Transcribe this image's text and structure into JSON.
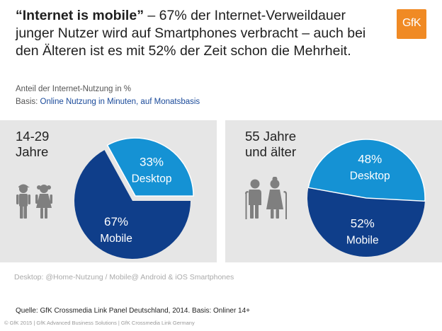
{
  "headline": {
    "bold": "“Internet is mobile”",
    "rest": " – 67% der Internet-Verweildauer junger Nutzer wird auf Smartphones verbracht – auch bei den Älteren ist es mit 52% der Zeit schon die Mehrheit."
  },
  "logo": {
    "text": "GfK",
    "color": "#f08a24"
  },
  "subtitle": {
    "line1": "Anteil der Internet-Nutzung in %",
    "basis_label": "Basis: ",
    "basis_value": "Online Nutzung in Minuten, auf Monatsbasis"
  },
  "colors": {
    "mobile": "#0f3e8a",
    "desktop": "#1592d4",
    "panel": "#e6e6e6"
  },
  "chart_data": [
    {
      "type": "pie",
      "group": [
        "14-29",
        "Jahre"
      ],
      "slices": [
        {
          "name": "Mobile",
          "label": "67%",
          "value": 67
        },
        {
          "name": "Desktop",
          "label": "33%",
          "value": 33
        }
      ]
    },
    {
      "type": "pie",
      "group": [
        "55 Jahre",
        "und älter"
      ],
      "slices": [
        {
          "name": "Mobile",
          "label": "52%",
          "value": 52
        },
        {
          "name": "Desktop",
          "label": "48%",
          "value": 48
        }
      ]
    }
  ],
  "footnote": "Desktop: @Home-Nutzung / Mobile@ Android & iOS Smartphones",
  "source": "Quelle: GfK Crossmedia Link Panel Deutschland, 2014. Basis: Onliner 14+",
  "copyright": "© GfK 2015 | GfK Advanced Business Solutions | GfK Crossmedia Link Germany"
}
